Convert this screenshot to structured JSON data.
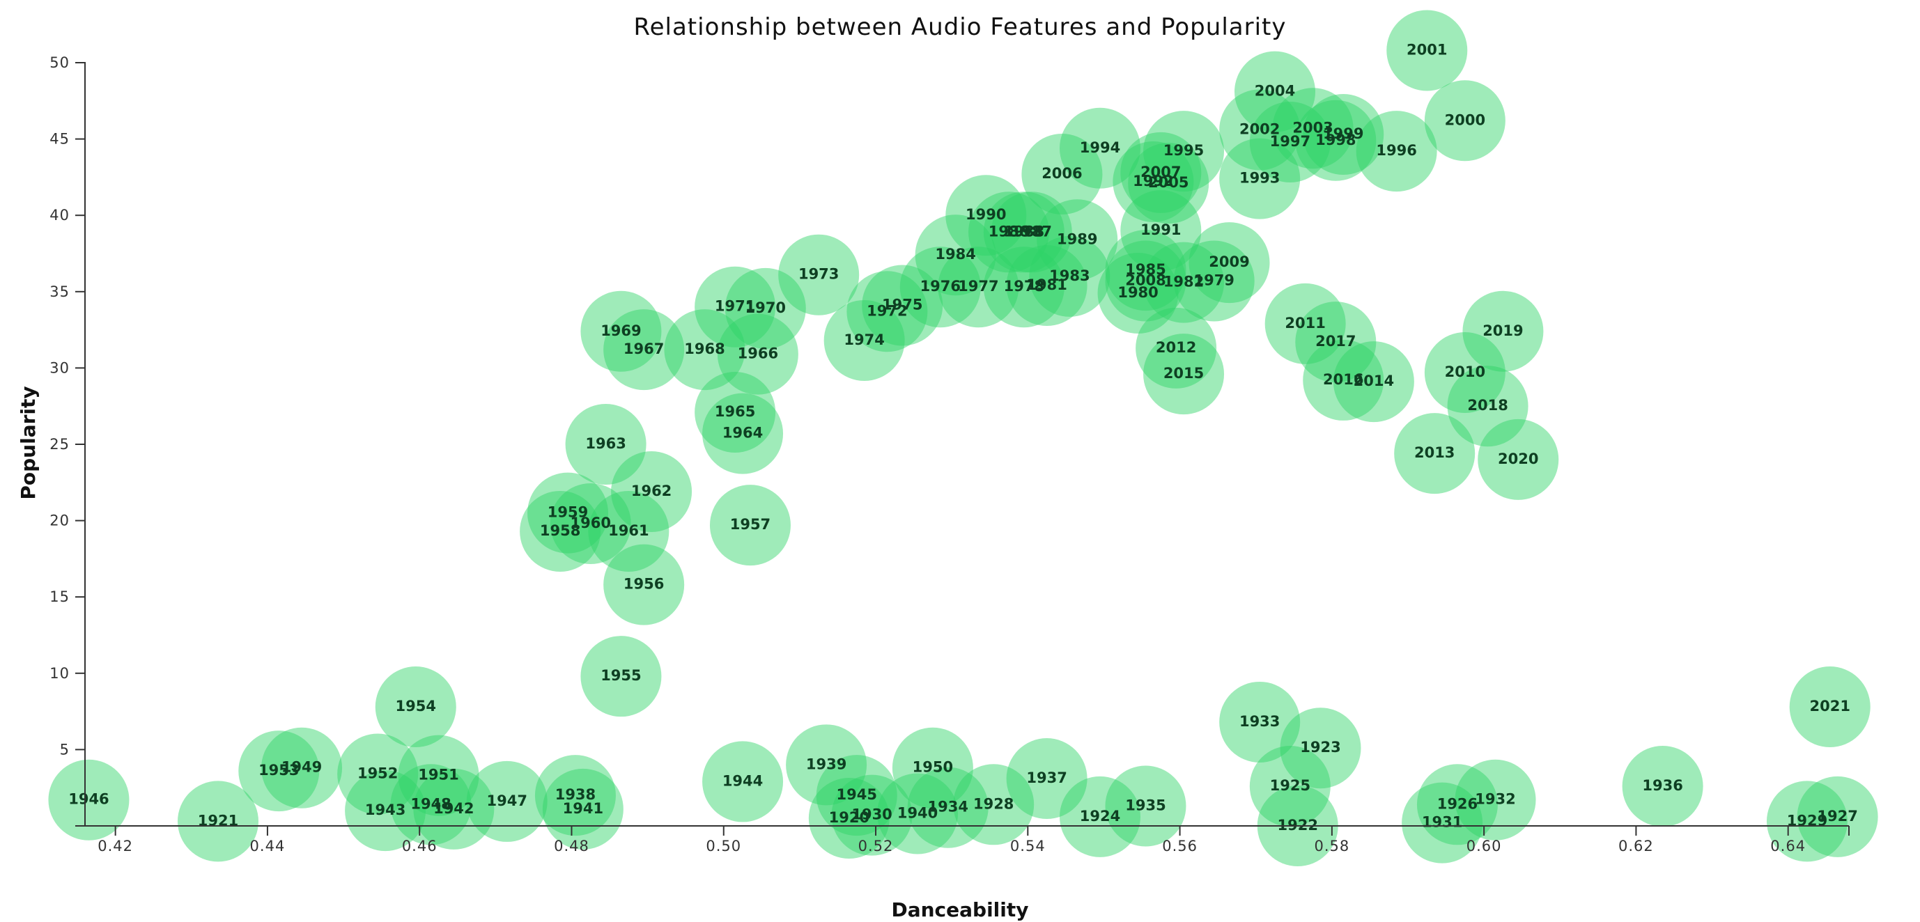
{
  "chart_data": {
    "type": "scatter",
    "title": "Relationship between Audio Features and Popularity",
    "xlabel": "Danceability",
    "ylabel": "Popularity",
    "xlim": [
      0.416,
      0.648
    ],
    "ylim": [
      0,
      50
    ],
    "xticks": [
      "0.42",
      "0.44",
      "0.46",
      "0.48",
      "0.50",
      "0.52",
      "0.54",
      "0.56",
      "0.58",
      "0.60",
      "0.62",
      "0.64"
    ],
    "yticks": [
      "5",
      "10",
      "15",
      "20",
      "25",
      "30",
      "35",
      "40",
      "45",
      "50"
    ],
    "colors": {
      "bubble": "#2ed467",
      "label": "#0e3f22",
      "axis": "#333333"
    },
    "points": [
      {
        "label": "1920",
        "x": 0.5165,
        "y": 0.5
      },
      {
        "label": "1921",
        "x": 0.4335,
        "y": 0.3
      },
      {
        "label": "1922",
        "x": 0.5755,
        "y": 0.0
      },
      {
        "label": "1923",
        "x": 0.5785,
        "y": 5.1
      },
      {
        "label": "1924",
        "x": 0.5495,
        "y": 0.6
      },
      {
        "label": "1925",
        "x": 0.5745,
        "y": 2.6
      },
      {
        "label": "1926",
        "x": 0.5965,
        "y": 1.4
      },
      {
        "label": "1927",
        "x": 0.6465,
        "y": 0.6
      },
      {
        "label": "1928",
        "x": 0.5355,
        "y": 1.4
      },
      {
        "label": "1929",
        "x": 0.6425,
        "y": 0.3
      },
      {
        "label": "1930",
        "x": 0.5195,
        "y": 0.7
      },
      {
        "label": "1931",
        "x": 0.5945,
        "y": 0.2
      },
      {
        "label": "1932",
        "x": 0.6015,
        "y": 1.7
      },
      {
        "label": "1933",
        "x": 0.5705,
        "y": 6.8
      },
      {
        "label": "1934",
        "x": 0.5295,
        "y": 1.2
      },
      {
        "label": "1935",
        "x": 0.5555,
        "y": 1.3
      },
      {
        "label": "1936",
        "x": 0.6235,
        "y": 2.6
      },
      {
        "label": "1937",
        "x": 0.5425,
        "y": 3.1
      },
      {
        "label": "1938",
        "x": 0.4805,
        "y": 2.0
      },
      {
        "label": "1939",
        "x": 0.5135,
        "y": 4.0
      },
      {
        "label": "1940",
        "x": 0.5255,
        "y": 0.8
      },
      {
        "label": "1941",
        "x": 0.4815,
        "y": 1.1
      },
      {
        "label": "1942",
        "x": 0.4645,
        "y": 1.1
      },
      {
        "label": "1943",
        "x": 0.4555,
        "y": 1.0
      },
      {
        "label": "1944",
        "x": 0.5025,
        "y": 2.9
      },
      {
        "label": "1945",
        "x": 0.5175,
        "y": 2.0
      },
      {
        "label": "1946",
        "x": 0.4165,
        "y": 1.7
      },
      {
        "label": "1947",
        "x": 0.4715,
        "y": 1.6
      },
      {
        "label": "1948",
        "x": 0.4615,
        "y": 1.4
      },
      {
        "label": "1949",
        "x": 0.4445,
        "y": 3.8
      },
      {
        "label": "1950",
        "x": 0.5275,
        "y": 3.8
      },
      {
        "label": "1951",
        "x": 0.4625,
        "y": 3.3
      },
      {
        "label": "1952",
        "x": 0.4545,
        "y": 3.4
      },
      {
        "label": "1953",
        "x": 0.4415,
        "y": 3.6
      },
      {
        "label": "1954",
        "x": 0.4595,
        "y": 7.8
      },
      {
        "label": "1955",
        "x": 0.4865,
        "y": 9.8
      },
      {
        "label": "1956",
        "x": 0.4895,
        "y": 15.8
      },
      {
        "label": "1957",
        "x": 0.5035,
        "y": 19.7
      },
      {
        "label": "1958",
        "x": 0.4785,
        "y": 19.3
      },
      {
        "label": "1959",
        "x": 0.4795,
        "y": 20.5
      },
      {
        "label": "1960",
        "x": 0.4825,
        "y": 19.8
      },
      {
        "label": "1961",
        "x": 0.4875,
        "y": 19.3
      },
      {
        "label": "1962",
        "x": 0.4905,
        "y": 21.9
      },
      {
        "label": "1963",
        "x": 0.4845,
        "y": 25.0
      },
      {
        "label": "1964",
        "x": 0.5025,
        "y": 25.7
      },
      {
        "label": "1965",
        "x": 0.5015,
        "y": 27.1
      },
      {
        "label": "1966",
        "x": 0.5045,
        "y": 30.9
      },
      {
        "label": "1967",
        "x": 0.4895,
        "y": 31.2
      },
      {
        "label": "1968",
        "x": 0.4975,
        "y": 31.2
      },
      {
        "label": "1969",
        "x": 0.4865,
        "y": 32.4
      },
      {
        "label": "1970",
        "x": 0.5055,
        "y": 33.9
      },
      {
        "label": "1971",
        "x": 0.5015,
        "y": 34.0
      },
      {
        "label": "1972",
        "x": 0.5215,
        "y": 33.7
      },
      {
        "label": "1973",
        "x": 0.5125,
        "y": 36.1
      },
      {
        "label": "1974",
        "x": 0.5185,
        "y": 31.8
      },
      {
        "label": "1975",
        "x": 0.5235,
        "y": 34.1
      },
      {
        "label": "1976",
        "x": 0.5285,
        "y": 35.3
      },
      {
        "label": "1977",
        "x": 0.5335,
        "y": 35.3
      },
      {
        "label": "1978",
        "x": 0.5395,
        "y": 35.3
      },
      {
        "label": "1979",
        "x": 0.5645,
        "y": 35.7
      },
      {
        "label": "1980",
        "x": 0.5545,
        "y": 34.9
      },
      {
        "label": "1981",
        "x": 0.5425,
        "y": 35.4
      },
      {
        "label": "1982",
        "x": 0.5605,
        "y": 35.6
      },
      {
        "label": "1983",
        "x": 0.5455,
        "y": 36.0
      },
      {
        "label": "1984",
        "x": 0.5305,
        "y": 37.4
      },
      {
        "label": "1985",
        "x": 0.5555,
        "y": 36.4
      },
      {
        "label": "1986",
        "x": 0.5375,
        "y": 38.9
      },
      {
        "label": "1987",
        "x": 0.5405,
        "y": 38.9
      },
      {
        "label": "1988",
        "x": 0.5395,
        "y": 38.9
      },
      {
        "label": "1989",
        "x": 0.5465,
        "y": 38.4
      },
      {
        "label": "1990",
        "x": 0.5345,
        "y": 40.0
      },
      {
        "label": "1991",
        "x": 0.5575,
        "y": 39.0
      },
      {
        "label": "1992",
        "x": 0.5565,
        "y": 42.2
      },
      {
        "label": "1993",
        "x": 0.5705,
        "y": 42.4
      },
      {
        "label": "1994",
        "x": 0.5495,
        "y": 44.4
      },
      {
        "label": "1995",
        "x": 0.5605,
        "y": 44.2
      },
      {
        "label": "1996",
        "x": 0.5885,
        "y": 44.2
      },
      {
        "label": "1997",
        "x": 0.5745,
        "y": 44.8
      },
      {
        "label": "1998",
        "x": 0.5805,
        "y": 44.9
      },
      {
        "label": "1999",
        "x": 0.5815,
        "y": 45.3
      },
      {
        "label": "2000",
        "x": 0.5975,
        "y": 46.2
      },
      {
        "label": "2001",
        "x": 0.5925,
        "y": 50.8
      },
      {
        "label": "2002",
        "x": 0.5705,
        "y": 45.6
      },
      {
        "label": "2003",
        "x": 0.5775,
        "y": 45.7
      },
      {
        "label": "2004",
        "x": 0.5725,
        "y": 48.1
      },
      {
        "label": "2005",
        "x": 0.5585,
        "y": 42.1
      },
      {
        "label": "2006",
        "x": 0.5445,
        "y": 42.7
      },
      {
        "label": "2007",
        "x": 0.5575,
        "y": 42.8
      },
      {
        "label": "2008",
        "x": 0.5555,
        "y": 35.7
      },
      {
        "label": "2009",
        "x": 0.5665,
        "y": 36.9
      },
      {
        "label": "2010",
        "x": 0.5975,
        "y": 29.7
      },
      {
        "label": "2011",
        "x": 0.5765,
        "y": 32.9
      },
      {
        "label": "2012",
        "x": 0.5595,
        "y": 31.3
      },
      {
        "label": "2013",
        "x": 0.5935,
        "y": 24.4
      },
      {
        "label": "2014",
        "x": 0.5855,
        "y": 29.1
      },
      {
        "label": "2015",
        "x": 0.5605,
        "y": 29.6
      },
      {
        "label": "2016",
        "x": 0.5815,
        "y": 29.2
      },
      {
        "label": "2017",
        "x": 0.5805,
        "y": 31.7
      },
      {
        "label": "2018",
        "x": 0.6005,
        "y": 27.5
      },
      {
        "label": "2019",
        "x": 0.6025,
        "y": 32.4
      },
      {
        "label": "2020",
        "x": 0.6045,
        "y": 24.0
      },
      {
        "label": "2021",
        "x": 0.6455,
        "y": 7.8
      }
    ]
  }
}
